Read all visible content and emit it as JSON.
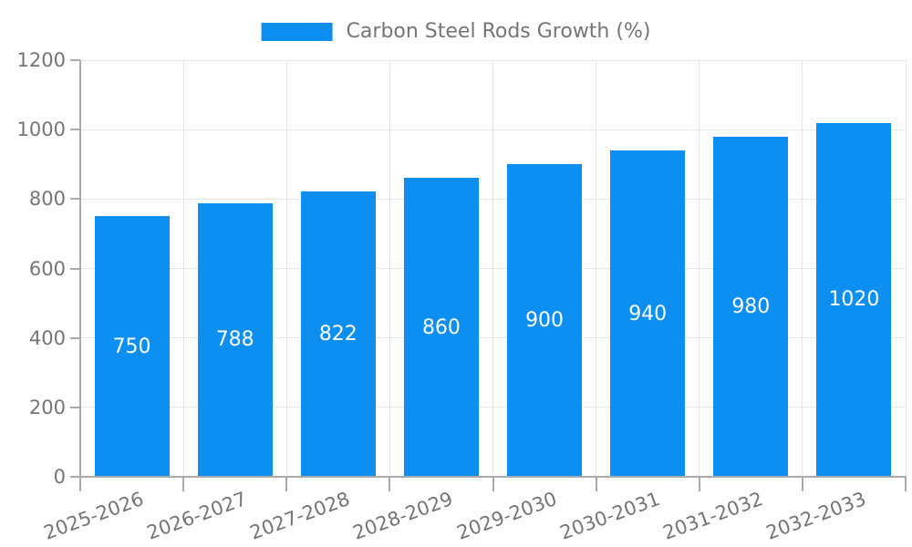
{
  "legend": {
    "label": "Carbon Steel Rods Growth (%)",
    "swatch_color": "#0d8ff2"
  },
  "chart_data": {
    "type": "bar",
    "title": "Carbon Steel Rods Growth (%)",
    "series_name": "Carbon Steel Rods Growth (%)",
    "categories": [
      "2025-2026",
      "2026-2027",
      "2027-2028",
      "2028-2029",
      "2029-2030",
      "2030-2031",
      "2031-2032",
      "2032-2033"
    ],
    "values": [
      750,
      788,
      822,
      860,
      900,
      940,
      980,
      1020
    ],
    "value_labels": [
      "750",
      "788",
      "822",
      "860",
      "900",
      "940",
      "980",
      "1020"
    ],
    "xlabel": "",
    "ylabel": "",
    "ylim": [
      0,
      1200
    ],
    "yticks": [
      0,
      200,
      400,
      600,
      800,
      1000,
      1200
    ],
    "grid": true,
    "legend_position": "top",
    "bar_color": "#0d8ff2",
    "value_label_color": "#ffffff",
    "axis_text_color": "#757575",
    "grid_color": "#e6e6e6",
    "axis_line_color": "#aaaaaa"
  }
}
